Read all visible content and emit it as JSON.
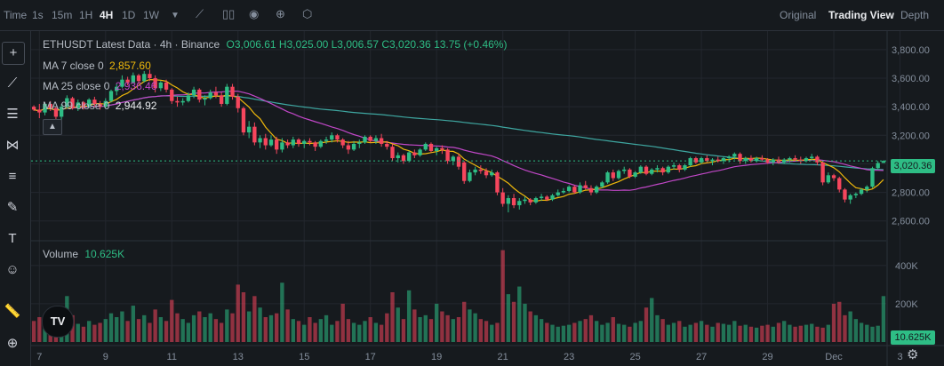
{
  "toolbar": {
    "time_label": "Time",
    "intervals": [
      "1s",
      "15m",
      "1H",
      "4H",
      "1D",
      "1W"
    ],
    "active_interval": "4H",
    "views": [
      "Original",
      "Trading View",
      "Depth"
    ],
    "active_view": "Trading View"
  },
  "legend": {
    "title": "ETHUSDT Latest Data · 4h · Binance",
    "ohlc": "O3,006.61 H3,025.00 L3,006.57 C3,020.36 13.75 (+0.46%)",
    "ma7_label": "MA 7 close 0",
    "ma7_value": "2,857.60",
    "ma25_label": "MA 25 close 0",
    "ma25_value": "2,936.46",
    "ma99_label": "MA 99 close 0",
    "ma99_value": "2,944.92",
    "volume_label": "Volume",
    "volume_value": "10.625K"
  },
  "price_tag": "3,020.36",
  "volume_tag": "10.625K",
  "logo_text": "TV",
  "colors": {
    "up": "#2ebd85",
    "down": "#f6465d",
    "ma7": "#f0b90b",
    "ma25": "#c147c7",
    "ma99": "#3ea6a0",
    "grid": "#23272e"
  },
  "chart_data": {
    "type": "candlestick",
    "symbol": "ETHUSDT",
    "interval": "4h",
    "price_axis": {
      "ticks": [
        2600,
        2800,
        3000,
        3200,
        3400,
        3600,
        3800
      ],
      "labels": [
        "2,600.00",
        "2,800.00",
        "3,000.00",
        "3,200.00",
        "3,400.00",
        "3,600.00",
        "3,800.00"
      ],
      "ylim": [
        2480,
        3930
      ]
    },
    "volume_axis": {
      "ticks": [
        200000,
        400000
      ],
      "labels": [
        "200K",
        "400K"
      ],
      "ylim": [
        0,
        520000
      ]
    },
    "x_labels": [
      "7",
      "9",
      "11",
      "13",
      "15",
      "17",
      "19",
      "21",
      "23",
      "25",
      "27",
      "29",
      "Dec",
      "3"
    ],
    "x_label_index": [
      1,
      13,
      25,
      37,
      49,
      61,
      73,
      85,
      97,
      109,
      121,
      133,
      145,
      157
    ],
    "ohlc": [
      [
        3400,
        3410,
        3370,
        3380
      ],
      [
        3380,
        3420,
        3320,
        3360
      ],
      [
        3360,
        3430,
        3340,
        3420
      ],
      [
        3420,
        3440,
        3370,
        3390
      ],
      [
        3390,
        3400,
        3310,
        3330
      ],
      [
        3330,
        3420,
        3280,
        3400
      ],
      [
        3400,
        3480,
        3390,
        3460
      ],
      [
        3460,
        3470,
        3380,
        3390
      ],
      [
        3390,
        3450,
        3370,
        3430
      ],
      [
        3430,
        3440,
        3380,
        3400
      ],
      [
        3400,
        3460,
        3390,
        3450
      ],
      [
        3450,
        3470,
        3400,
        3420
      ],
      [
        3420,
        3440,
        3380,
        3400
      ],
      [
        3400,
        3460,
        3390,
        3440
      ],
      [
        3440,
        3520,
        3430,
        3510
      ],
      [
        3510,
        3560,
        3480,
        3540
      ],
      [
        3540,
        3620,
        3530,
        3590
      ],
      [
        3590,
        3610,
        3550,
        3570
      ],
      [
        3570,
        3640,
        3560,
        3620
      ],
      [
        3620,
        3630,
        3560,
        3580
      ],
      [
        3580,
        3650,
        3570,
        3630
      ],
      [
        3630,
        3660,
        3580,
        3600
      ],
      [
        3600,
        3620,
        3500,
        3530
      ],
      [
        3530,
        3580,
        3510,
        3570
      ],
      [
        3570,
        3590,
        3500,
        3520
      ],
      [
        3520,
        3530,
        3420,
        3440
      ],
      [
        3440,
        3470,
        3400,
        3430
      ],
      [
        3430,
        3460,
        3410,
        3440
      ],
      [
        3440,
        3500,
        3430,
        3480
      ],
      [
        3480,
        3540,
        3460,
        3520
      ],
      [
        3520,
        3530,
        3430,
        3450
      ],
      [
        3450,
        3480,
        3410,
        3460
      ],
      [
        3460,
        3520,
        3450,
        3500
      ],
      [
        3500,
        3540,
        3460,
        3480
      ],
      [
        3480,
        3500,
        3400,
        3420
      ],
      [
        3420,
        3560,
        3410,
        3540
      ],
      [
        3540,
        3560,
        3450,
        3470
      ],
      [
        3470,
        3490,
        3360,
        3390
      ],
      [
        3390,
        3400,
        3200,
        3220
      ],
      [
        3220,
        3300,
        3180,
        3260
      ],
      [
        3260,
        3290,
        3130,
        3150
      ],
      [
        3150,
        3200,
        3110,
        3180
      ],
      [
        3180,
        3210,
        3100,
        3130
      ],
      [
        3130,
        3200,
        3120,
        3170
      ],
      [
        3170,
        3190,
        3070,
        3100
      ],
      [
        3100,
        3180,
        3080,
        3150
      ],
      [
        3150,
        3170,
        3110,
        3130
      ],
      [
        3130,
        3190,
        3110,
        3170
      ],
      [
        3170,
        3180,
        3120,
        3140
      ],
      [
        3140,
        3170,
        3110,
        3160
      ],
      [
        3160,
        3180,
        3130,
        3150
      ],
      [
        3150,
        3160,
        3090,
        3120
      ],
      [
        3120,
        3170,
        3110,
        3160
      ],
      [
        3160,
        3190,
        3140,
        3170
      ],
      [
        3170,
        3220,
        3150,
        3200
      ],
      [
        3200,
        3210,
        3150,
        3170
      ],
      [
        3170,
        3180,
        3110,
        3130
      ],
      [
        3130,
        3160,
        3070,
        3100
      ],
      [
        3100,
        3160,
        3090,
        3140
      ],
      [
        3140,
        3170,
        3110,
        3150
      ],
      [
        3150,
        3200,
        3140,
        3190
      ],
      [
        3190,
        3200,
        3150,
        3160
      ],
      [
        3160,
        3200,
        3140,
        3180
      ],
      [
        3180,
        3210,
        3120,
        3140
      ],
      [
        3140,
        3160,
        3100,
        3120
      ],
      [
        3120,
        3140,
        3020,
        3040
      ],
      [
        3040,
        3080,
        3010,
        3060
      ],
      [
        3060,
        3070,
        3000,
        3020
      ],
      [
        3020,
        3090,
        3010,
        3080
      ],
      [
        3080,
        3100,
        3040,
        3060
      ],
      [
        3060,
        3110,
        3050,
        3100
      ],
      [
        3100,
        3150,
        3090,
        3140
      ],
      [
        3140,
        3150,
        3080,
        3090
      ],
      [
        3090,
        3120,
        3060,
        3110
      ],
      [
        3110,
        3130,
        3070,
        3100
      ],
      [
        3100,
        3110,
        3000,
        3020
      ],
      [
        3020,
        3060,
        2990,
        3050
      ],
      [
        3050,
        3070,
        2960,
        2980
      ],
      [
        3010,
        3020,
        2860,
        2880
      ],
      [
        2880,
        2960,
        2870,
        2940
      ],
      [
        2940,
        2980,
        2920,
        2960
      ],
      [
        2960,
        2990,
        2930,
        2950
      ],
      [
        2950,
        2970,
        2900,
        2920
      ],
      [
        2920,
        2960,
        2910,
        2940
      ],
      [
        2940,
        2950,
        2780,
        2800
      ],
      [
        2800,
        2830,
        2700,
        2720
      ],
      [
        2720,
        2780,
        2660,
        2760
      ],
      [
        2760,
        2790,
        2690,
        2710
      ],
      [
        2710,
        2760,
        2680,
        2740
      ],
      [
        2740,
        2770,
        2720,
        2750
      ],
      [
        2750,
        2760,
        2710,
        2730
      ],
      [
        2730,
        2770,
        2720,
        2760
      ],
      [
        2760,
        2790,
        2740,
        2770
      ],
      [
        2770,
        2780,
        2740,
        2750
      ],
      [
        2750,
        2790,
        2740,
        2780
      ],
      [
        2780,
        2820,
        2770,
        2800
      ],
      [
        2800,
        2830,
        2790,
        2810
      ],
      [
        2810,
        2850,
        2800,
        2840
      ],
      [
        2840,
        2850,
        2790,
        2800
      ],
      [
        2800,
        2870,
        2790,
        2850
      ],
      [
        2850,
        2880,
        2820,
        2830
      ],
      [
        2830,
        2850,
        2780,
        2800
      ],
      [
        2800,
        2850,
        2790,
        2840
      ],
      [
        2840,
        2880,
        2830,
        2870
      ],
      [
        2870,
        2950,
        2860,
        2940
      ],
      [
        2940,
        2960,
        2880,
        2900
      ],
      [
        2900,
        2960,
        2890,
        2950
      ],
      [
        2950,
        2980,
        2930,
        2960
      ],
      [
        2960,
        2970,
        2900,
        2910
      ],
      [
        2910,
        2950,
        2900,
        2940
      ],
      [
        2940,
        2990,
        2930,
        2980
      ],
      [
        2980,
        2990,
        2920,
        2930
      ],
      [
        2930,
        2970,
        2920,
        2960
      ],
      [
        2960,
        2990,
        2940,
        2970
      ],
      [
        2970,
        2980,
        2920,
        2940
      ],
      [
        2940,
        2990,
        2930,
        2980
      ],
      [
        2980,
        3010,
        2960,
        2990
      ],
      [
        2990,
        3000,
        2940,
        2960
      ],
      [
        2960,
        3000,
        2950,
        2990
      ],
      [
        2990,
        3050,
        2980,
        3040
      ],
      [
        3040,
        3050,
        3000,
        3010
      ],
      [
        3010,
        3050,
        3000,
        3040
      ],
      [
        3040,
        3060,
        3010,
        3020
      ],
      [
        3020,
        3040,
        2990,
        3030
      ],
      [
        3030,
        3050,
        3010,
        3020
      ],
      [
        3020,
        3050,
        3000,
        3040
      ],
      [
        3040,
        3060,
        3010,
        3050
      ],
      [
        3050,
        3080,
        3030,
        3070
      ],
      [
        3070,
        3080,
        3000,
        3020
      ],
      [
        3020,
        3050,
        3000,
        3040
      ],
      [
        3040,
        3060,
        3010,
        3020
      ],
      [
        3020,
        3050,
        3010,
        3040
      ],
      [
        3040,
        3060,
        3020,
        3030
      ],
      [
        3030,
        3040,
        3000,
        3010
      ],
      [
        3010,
        3040,
        2990,
        3030
      ],
      [
        3030,
        3050,
        3000,
        3010
      ],
      [
        3010,
        3040,
        3000,
        3030
      ],
      [
        3030,
        3050,
        3010,
        3040
      ],
      [
        3040,
        3060,
        3020,
        3030
      ],
      [
        3030,
        3050,
        3000,
        3020
      ],
      [
        3020,
        3050,
        3010,
        3040
      ],
      [
        3040,
        3070,
        3020,
        3050
      ],
      [
        3050,
        3060,
        2990,
        3010
      ],
      [
        3010,
        3020,
        2850,
        2870
      ],
      [
        2870,
        2940,
        2860,
        2920
      ],
      [
        2920,
        2930,
        2880,
        2900
      ],
      [
        2900,
        2910,
        2800,
        2820
      ],
      [
        2820,
        2830,
        2730,
        2750
      ],
      [
        2750,
        2790,
        2720,
        2780
      ],
      [
        2780,
        2800,
        2760,
        2790
      ],
      [
        2790,
        2830,
        2780,
        2820
      ],
      [
        2820,
        2850,
        2800,
        2840
      ],
      [
        2840,
        2980,
        2830,
        2970
      ],
      [
        2970,
        3020,
        2960,
        3006
      ],
      [
        3006.61,
        3025,
        3006.57,
        3020.36
      ]
    ],
    "volume": [
      110000,
      130000,
      90000,
      105000,
      160000,
      120000,
      240000,
      140000,
      95000,
      80000,
      110000,
      90000,
      100000,
      120000,
      150000,
      130000,
      160000,
      110000,
      190000,
      120000,
      140000,
      100000,
      170000,
      130000,
      110000,
      220000,
      150000,
      120000,
      100000,
      140000,
      160000,
      130000,
      150000,
      120000,
      100000,
      170000,
      150000,
      300000,
      260000,
      160000,
      240000,
      180000,
      130000,
      140000,
      150000,
      310000,
      170000,
      120000,
      110000,
      90000,
      130000,
      100000,
      120000,
      140000,
      90000,
      110000,
      200000,
      120000,
      100000,
      90000,
      110000,
      130000,
      100000,
      90000,
      150000,
      260000,
      180000,
      120000,
      270000,
      170000,
      130000,
      140000,
      120000,
      200000,
      160000,
      140000,
      120000,
      130000,
      210000,
      170000,
      150000,
      120000,
      110000,
      90000,
      100000,
      480000,
      250000,
      210000,
      290000,
      200000,
      160000,
      140000,
      120000,
      100000,
      90000,
      80000,
      85000,
      90000,
      100000,
      110000,
      120000,
      140000,
      110000,
      90000,
      100000,
      130000,
      95000,
      90000,
      80000,
      100000,
      110000,
      180000,
      230000,
      140000,
      120000,
      90000,
      100000,
      110000,
      80000,
      90000,
      100000,
      110000,
      90000,
      80000,
      100000,
      95000,
      90000,
      110000,
      85000,
      90000,
      80000,
      75000,
      85000,
      90000,
      80000,
      100000,
      110000,
      90000,
      80000,
      85000,
      90000,
      95000,
      80000,
      75000,
      90000,
      200000,
      210000,
      140000,
      160000,
      120000,
      100000,
      90000,
      80000,
      85000,
      240000,
      100000,
      10625
    ]
  }
}
